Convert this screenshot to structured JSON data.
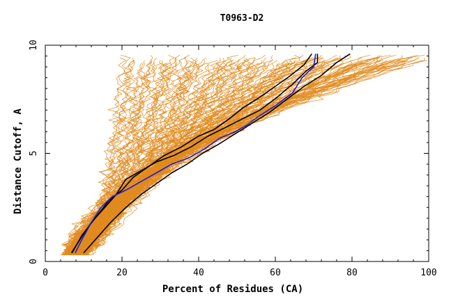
{
  "chart_data": {
    "type": "line",
    "title": "T0963-D2",
    "xlabel": "Percent of Residues (CA)",
    "ylabel": "Distance Cutoff, A",
    "xlim": [
      0,
      100
    ],
    "ylim": [
      0,
      10
    ],
    "xticks": [
      0,
      20,
      40,
      60,
      80,
      100
    ],
    "yticks": [
      0,
      5,
      10
    ],
    "grid": false,
    "colors": {
      "models": "#e08a1e",
      "black": "#000000",
      "blue": "#1c1cd8"
    },
    "series": [
      {
        "color": "black",
        "x": [
          7.0,
          9.5,
          13.0,
          16.5,
          20.0,
          23.0,
          27.0,
          31.0,
          35.5,
          40.0,
          44.0,
          48.0,
          51.5,
          56.0,
          60.0,
          64.0,
          67.5,
          69.5
        ],
        "y": [
          0.4,
          1.2,
          2.0,
          2.8,
          3.3,
          3.9,
          4.4,
          4.9,
          5.3,
          5.8,
          6.1,
          6.6,
          7.1,
          7.6,
          8.1,
          8.6,
          9.1,
          9.6
        ]
      },
      {
        "color": "black",
        "x": [
          6.8,
          9.0,
          12.0,
          15.5,
          18.5,
          21.0,
          25.0,
          29.0,
          33.5,
          38.0,
          42.5,
          47.0,
          51.5,
          56.0,
          60.5,
          64.5,
          68.0,
          71.0,
          71.0
        ],
        "y": [
          0.4,
          1.0,
          1.8,
          2.5,
          3.1,
          3.8,
          4.2,
          4.6,
          4.9,
          5.3,
          5.8,
          6.2,
          6.6,
          7.0,
          7.6,
          8.2,
          8.8,
          9.2,
          9.6
        ]
      },
      {
        "color": "black",
        "x": [
          10.0,
          13.5,
          17.0,
          21.0,
          25.0,
          29.0,
          33.0,
          37.0,
          41.0,
          45.0,
          49.5,
          54.0,
          58.5,
          63.0,
          67.5,
          72.0,
          76.0,
          79.5
        ],
        "y": [
          0.4,
          1.1,
          1.8,
          2.5,
          3.1,
          3.6,
          4.1,
          4.5,
          5.0,
          5.4,
          5.9,
          6.4,
          6.9,
          7.5,
          8.1,
          8.6,
          9.2,
          9.6
        ]
      },
      {
        "color": "blue",
        "x": [
          7.8,
          9.5,
          12.0,
          14.5,
          17.5,
          21.0,
          25.0,
          29.0,
          33.0,
          37.5,
          41.5,
          45.5,
          49.5,
          52.5,
          55.5,
          60.0,
          64.5,
          67.0,
          70.0,
          70.5
        ],
        "y": [
          0.4,
          1.0,
          1.8,
          2.5,
          3.0,
          3.3,
          3.7,
          4.1,
          4.5,
          4.8,
          5.2,
          5.7,
          6.0,
          6.3,
          6.7,
          7.2,
          7.8,
          8.5,
          9.0,
          9.6
        ]
      }
    ],
    "model_curves_count": 150
  }
}
